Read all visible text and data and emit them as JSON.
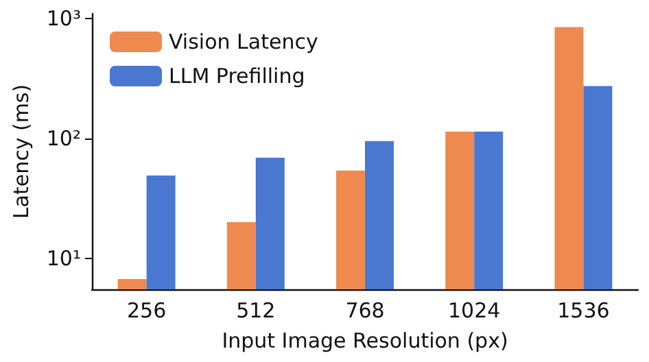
{
  "chart_data": {
    "type": "bar",
    "xlabel": "Input Image Resolution (px)",
    "ylabel": "Latency (ms)",
    "categories": [
      "256",
      "512",
      "768",
      "1024",
      "1536"
    ],
    "series": [
      {
        "name": "Vision Latency",
        "color": "#ee8a4f",
        "values": [
          6.7,
          20,
          54,
          114,
          850
        ]
      },
      {
        "name": "LLM Prefilling",
        "color": "#4a78d0",
        "values": [
          49,
          69,
          95,
          114,
          274
        ]
      }
    ],
    "log": true,
    "ylim": [
      5.5,
      1100
    ],
    "yticks": [
      {
        "value": 10,
        "label": "10¹"
      },
      {
        "value": 100,
        "label": "10²"
      },
      {
        "value": 1000,
        "label": "10³"
      }
    ],
    "grid": false,
    "legend": "top left"
  }
}
